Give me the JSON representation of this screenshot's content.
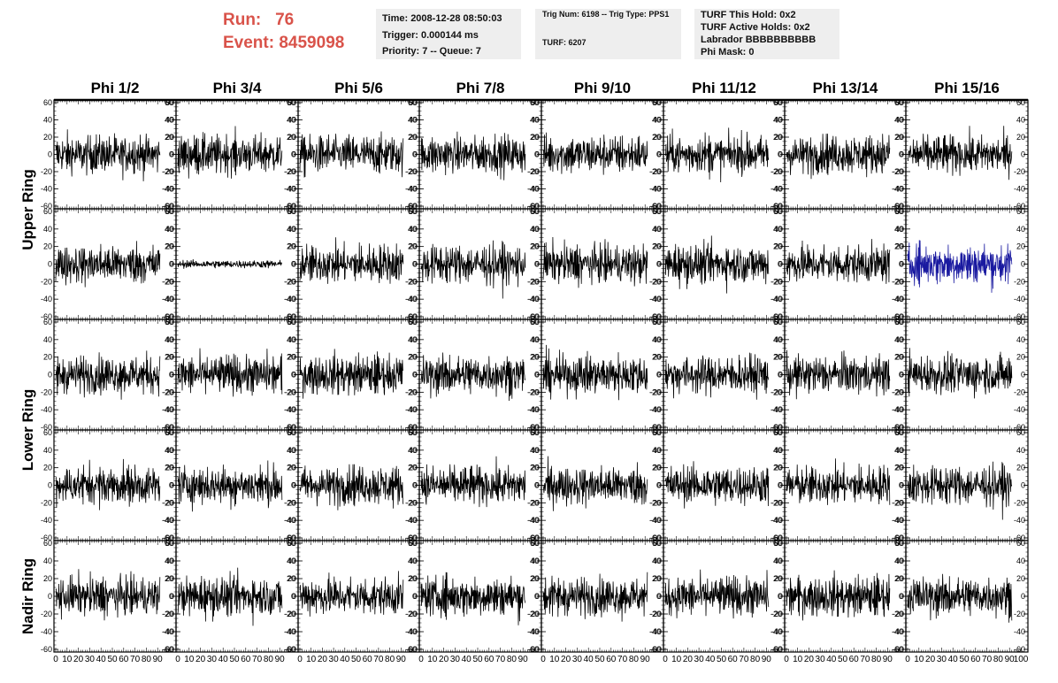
{
  "header": {
    "run_label": "Run:",
    "run_value": "76",
    "event_label": "Event:",
    "event_value": "8459098",
    "time_line": "Time: 2008-12-28 08:50:03",
    "trigger_line": "Trigger: 0.000144 ms",
    "priority_line": "Priority: 7 -- Queue: 7",
    "trig_num_line": "Trig Num: 6198 -- Trig Type: PPS1",
    "turf_line": "TURF: 6207",
    "turf_hold_line": "TURF This Hold: 0x2",
    "turf_active_line": "TURF Active Holds: 0x2",
    "labrador_line": "Labrador BBBBBBBBBB",
    "phi_mask_line": "Phi Mask: 0"
  },
  "colors": {
    "trace": "#000000",
    "highlight_trace": "#1a1aa0",
    "run_text": "#d9534a"
  },
  "chart_data": {
    "type": "line",
    "column_titles": [
      "Phi 1/2",
      "Phi 3/4",
      "Phi 5/6",
      "Phi 7/8",
      "Phi 9/10",
      "Phi 11/12",
      "Phi 13/14",
      "Phi 15/16"
    ],
    "row_group_labels": [
      "Upper Ring",
      "Lower Ring",
      "Nadir Ring"
    ],
    "rows": 5,
    "cols": 8,
    "ylim": [
      -60,
      60
    ],
    "y_ticks": [
      -60,
      -40,
      -20,
      0,
      20,
      40,
      60
    ],
    "xlim": [
      0,
      100
    ],
    "x_tick_labels": [
      "0",
      "10",
      "20",
      "30",
      "40",
      "50",
      "60",
      "70",
      "80",
      "90",
      "100"
    ],
    "samples_per_trace": 260,
    "typical_amplitude": 20,
    "panels_amplitude_override": [
      {
        "row": 1,
        "col": 1,
        "amplitude": 4
      }
    ],
    "highlighted_panel": {
      "row": 1,
      "col": 7
    }
  }
}
